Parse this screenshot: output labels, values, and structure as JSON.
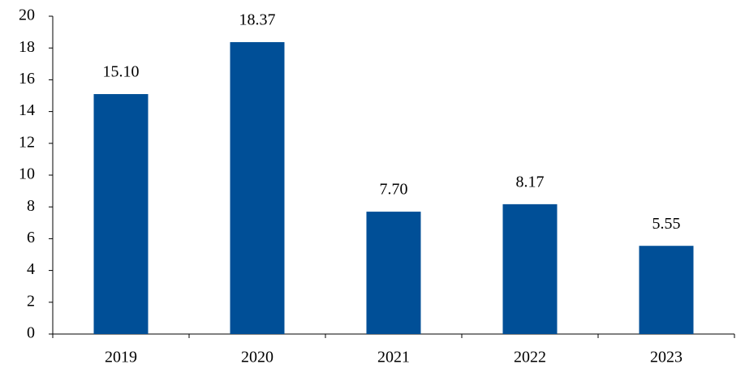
{
  "chart_data": {
    "type": "bar",
    "categories": [
      "2019",
      "2020",
      "2021",
      "2022",
      "2023"
    ],
    "values": [
      15.1,
      18.37,
      7.7,
      8.17,
      5.55
    ],
    "value_labels": [
      "15.10",
      "18.37",
      "7.70",
      "8.17",
      "5.55"
    ],
    "color": "#004f97",
    "ylim": [
      0,
      20
    ],
    "yticks": [
      0,
      2,
      4,
      6,
      8,
      10,
      12,
      14,
      16,
      18,
      20
    ],
    "grid": false
  }
}
